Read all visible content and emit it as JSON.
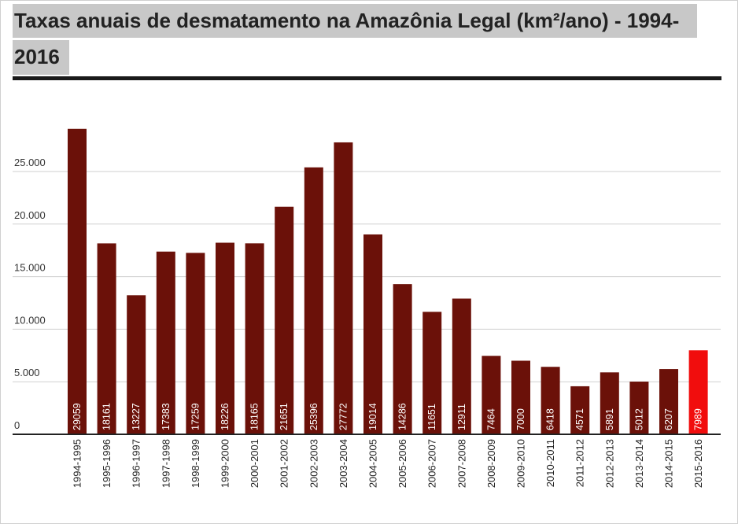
{
  "title": {
    "line1": "Taxas anuais de desmatamento na Amazônia Legal (km²/ano) - 1994-",
    "line2": "2016"
  },
  "colors": {
    "bar": "#6b1109",
    "highlight_bar": "#f10d0d",
    "grid": "#cfcfcf",
    "axis": "#222222",
    "title_background": "#c8c8c8"
  },
  "chart_data": {
    "type": "bar",
    "title": "Taxas anuais de desmatamento na Amazônia Legal (km²/ano) - 1994-2016",
    "xlabel": "",
    "ylabel": "",
    "ylim": [
      0,
      30000
    ],
    "yticks": [
      0,
      5000,
      10000,
      15000,
      20000,
      25000
    ],
    "ytick_labels": [
      "0",
      "5.000",
      "10.000",
      "15.000",
      "20.000",
      "25.000"
    ],
    "grid": true,
    "categories": [
      "1994-1995",
      "1995-1996",
      "1996-1997",
      "1997-1998",
      "1998-1999",
      "1999-2000",
      "2000-2001",
      "2001-2002",
      "2002-2003",
      "2003-2004",
      "2004-2005",
      "2005-2006",
      "2006-2007",
      "2007-2008",
      "2008-2009",
      "2009-2010",
      "2010-2011",
      "2011-2012",
      "2012-2013",
      "2013-2014",
      "2014-2015",
      "2015-2016"
    ],
    "values": [
      29059,
      18161,
      13227,
      17383,
      17259,
      18226,
      18165,
      21651,
      25396,
      27772,
      19014,
      14286,
      11651,
      12911,
      7464,
      7000,
      6418,
      4571,
      5891,
      5012,
      6207,
      7989
    ],
    "highlighted_category": "2015-2016"
  }
}
